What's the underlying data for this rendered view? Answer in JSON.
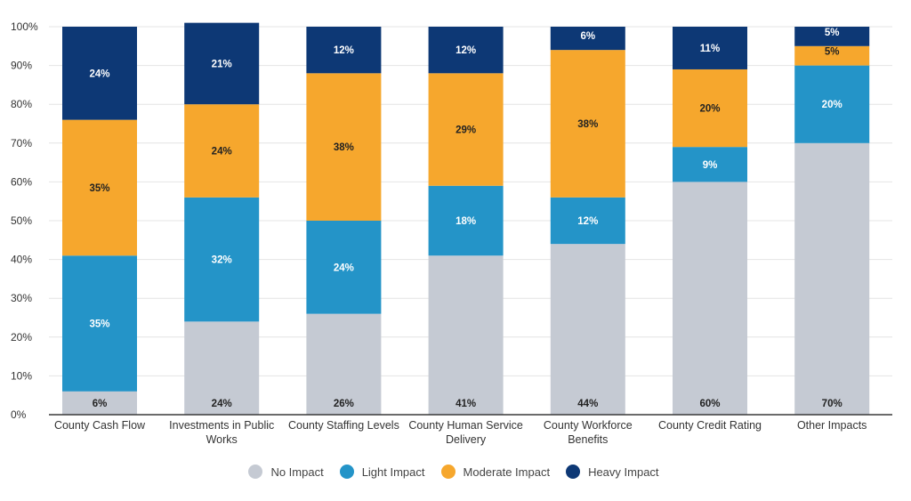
{
  "chart_data": {
    "type": "bar",
    "stacked": true,
    "title": "",
    "xlabel": "",
    "ylabel": "",
    "ylim": [
      0,
      100
    ],
    "y_tick_labels": [
      "0%",
      "10%",
      "20%",
      "30%",
      "40%",
      "50%",
      "60%",
      "70%",
      "80%",
      "90%",
      "100%"
    ],
    "grid": true,
    "legend_position": "bottom",
    "categories": [
      [
        "County Cash Flow"
      ],
      [
        "Investments in Public",
        "Works"
      ],
      [
        "County Staffing Levels"
      ],
      [
        "County Human Service",
        "Delivery"
      ],
      [
        "County Workforce",
        "Benefits"
      ],
      [
        "County Credit Rating"
      ],
      [
        "Other Impacts"
      ]
    ],
    "series": [
      {
        "name": "No Impact",
        "color": "#c5cad3",
        "label_color": "#222222",
        "values": [
          6,
          24,
          26,
          41,
          44,
          60,
          70
        ]
      },
      {
        "name": "Light Impact",
        "color": "#2494c8",
        "label_color": "#ffffff",
        "values": [
          35,
          32,
          24,
          18,
          12,
          9,
          20
        ]
      },
      {
        "name": "Moderate Impact",
        "color": "#f6a72d",
        "label_color": "#222222",
        "values": [
          35,
          24,
          38,
          29,
          38,
          20,
          5
        ]
      },
      {
        "name": "Heavy Impact",
        "color": "#0d3875",
        "label_color": "#ffffff",
        "values": [
          24,
          21,
          12,
          12,
          6,
          11,
          5
        ]
      }
    ]
  }
}
